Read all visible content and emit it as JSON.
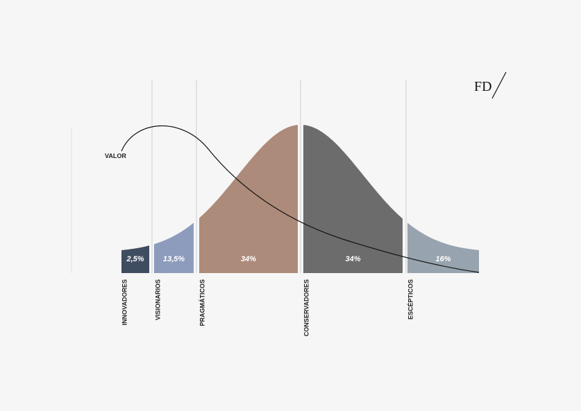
{
  "logo": "FD",
  "curve_label": "VALOR",
  "segments": [
    {
      "label": "INNOVADORES",
      "share": "2,5%"
    },
    {
      "label": "VISIONARIOS",
      "share": "13,5%"
    },
    {
      "label": "PRAGMÁTICOS",
      "share": "34%"
    },
    {
      "label": "CONSERVADORES",
      "share": "34%"
    },
    {
      "label": "ESCÉPTICOS",
      "share": "16%"
    }
  ]
}
